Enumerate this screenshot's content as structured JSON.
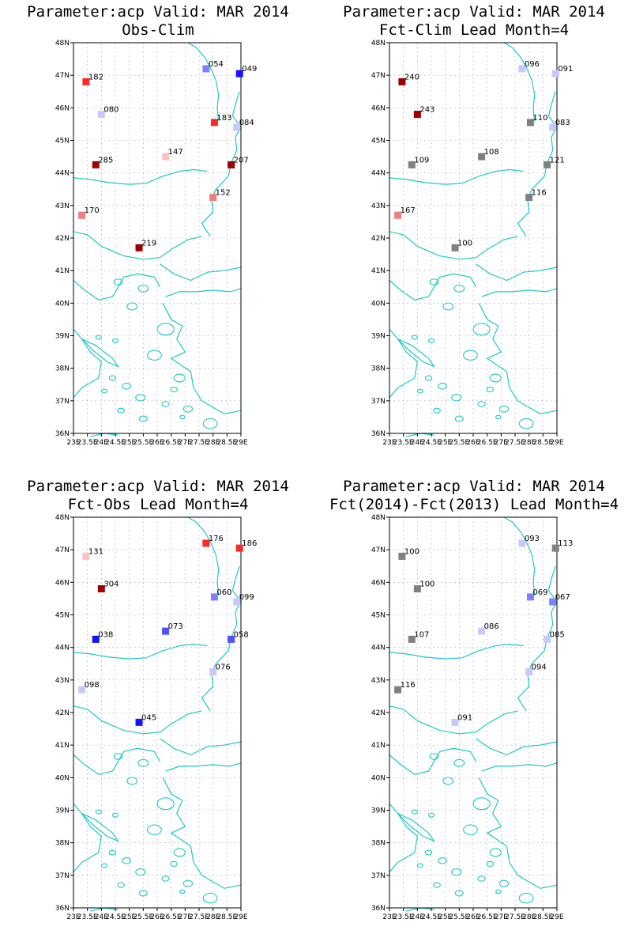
{
  "figure": {
    "lat_ticks": [
      "48N",
      "47N",
      "46N",
      "45N",
      "44N",
      "43N",
      "42N",
      "41N",
      "40N",
      "39N",
      "38N",
      "37N",
      "36N"
    ],
    "lon_ticks": [
      "23E",
      "23.5E",
      "24E",
      "24.5E",
      "25E",
      "25.5E",
      "26E",
      "26.5E",
      "27E",
      "27.5E",
      "28E",
      "28.5E",
      "29E"
    ],
    "lon_range": [
      23,
      29
    ],
    "lat_range": [
      36,
      48
    ],
    "grid": true,
    "coastline_color": "#1fc8c8",
    "colors": {
      "dark_red": "#9c0000",
      "red": "#ff2828",
      "light_red": "#f08080",
      "pink": "#ffc0c0",
      "gray": "#808080",
      "pale_blue": "#c8c8ff",
      "light_blue": "#8080ff",
      "medium_blue": "#5050ff",
      "blue": "#1414ff"
    }
  },
  "panels": [
    {
      "title1": "Parameter:acp Valid: MAR 2014",
      "title2": "Obs-Clim",
      "stations": [
        {
          "lon": 23.45,
          "lat": 46.8,
          "label": "182",
          "color": "red"
        },
        {
          "lon": 27.75,
          "lat": 47.2,
          "label": "054",
          "color": "light_blue"
        },
        {
          "lon": 28.95,
          "lat": 47.05,
          "label": "049",
          "color": "blue"
        },
        {
          "lon": 24.0,
          "lat": 45.8,
          "label": "080",
          "color": "pale_blue"
        },
        {
          "lon": 28.05,
          "lat": 45.55,
          "label": "183",
          "color": "red"
        },
        {
          "lon": 28.85,
          "lat": 45.4,
          "label": "084",
          "color": "pale_blue"
        },
        {
          "lon": 23.8,
          "lat": 44.25,
          "label": "285",
          "color": "dark_red"
        },
        {
          "lon": 26.3,
          "lat": 44.5,
          "label": "147",
          "color": "pink"
        },
        {
          "lon": 28.65,
          "lat": 44.25,
          "label": "207",
          "color": "dark_red"
        },
        {
          "lon": 28.0,
          "lat": 43.25,
          "label": "152",
          "color": "light_red"
        },
        {
          "lon": 23.3,
          "lat": 42.7,
          "label": "170",
          "color": "light_red"
        },
        {
          "lon": 25.35,
          "lat": 41.7,
          "label": "219",
          "color": "dark_red"
        }
      ]
    },
    {
      "title1": "Parameter:acp Valid: MAR 2014",
      "title2": "Fct-Clim Lead Month=4",
      "stations": [
        {
          "lon": 23.45,
          "lat": 46.8,
          "label": "240",
          "color": "dark_red"
        },
        {
          "lon": 27.75,
          "lat": 47.2,
          "label": "096",
          "color": "pale_blue"
        },
        {
          "lon": 28.95,
          "lat": 47.05,
          "label": "091",
          "color": "pale_blue"
        },
        {
          "lon": 24.0,
          "lat": 45.8,
          "label": "243",
          "color": "dark_red"
        },
        {
          "lon": 28.05,
          "lat": 45.55,
          "label": "110",
          "color": "gray"
        },
        {
          "lon": 28.85,
          "lat": 45.4,
          "label": "083",
          "color": "pale_blue"
        },
        {
          "lon": 23.8,
          "lat": 44.25,
          "label": "109",
          "color": "gray"
        },
        {
          "lon": 26.3,
          "lat": 44.5,
          "label": "108",
          "color": "gray"
        },
        {
          "lon": 28.65,
          "lat": 44.25,
          "label": "121",
          "color": "gray"
        },
        {
          "lon": 28.0,
          "lat": 43.25,
          "label": "116",
          "color": "gray"
        },
        {
          "lon": 23.3,
          "lat": 42.7,
          "label": "167",
          "color": "light_red"
        },
        {
          "lon": 25.35,
          "lat": 41.7,
          "label": "100",
          "color": "gray"
        }
      ]
    },
    {
      "title1": "Parameter:acp Valid: MAR 2014",
      "title2": "Fct-Obs Lead Month=4",
      "stations": [
        {
          "lon": 23.45,
          "lat": 46.8,
          "label": "131",
          "color": "pink"
        },
        {
          "lon": 27.75,
          "lat": 47.2,
          "label": "176",
          "color": "red"
        },
        {
          "lon": 28.95,
          "lat": 47.05,
          "label": "186",
          "color": "red"
        },
        {
          "lon": 24.0,
          "lat": 45.8,
          "label": "304",
          "color": "dark_red"
        },
        {
          "lon": 28.05,
          "lat": 45.55,
          "label": "060",
          "color": "light_blue"
        },
        {
          "lon": 28.85,
          "lat": 45.4,
          "label": "099",
          "color": "pale_blue"
        },
        {
          "lon": 23.8,
          "lat": 44.25,
          "label": "038",
          "color": "blue"
        },
        {
          "lon": 26.3,
          "lat": 44.5,
          "label": "073",
          "color": "medium_blue"
        },
        {
          "lon": 28.65,
          "lat": 44.25,
          "label": "058",
          "color": "medium_blue"
        },
        {
          "lon": 28.0,
          "lat": 43.25,
          "label": "076",
          "color": "pale_blue"
        },
        {
          "lon": 23.3,
          "lat": 42.7,
          "label": "098",
          "color": "pale_blue"
        },
        {
          "lon": 25.35,
          "lat": 41.7,
          "label": "045",
          "color": "blue"
        }
      ]
    },
    {
      "title1": "Parameter:acp Valid: MAR 2014",
      "title2": "Fct(2014)-Fct(2013) Lead Month=4",
      "stations": [
        {
          "lon": 23.45,
          "lat": 46.8,
          "label": "100",
          "color": "gray"
        },
        {
          "lon": 27.75,
          "lat": 47.2,
          "label": "093",
          "color": "pale_blue"
        },
        {
          "lon": 28.95,
          "lat": 47.05,
          "label": "113",
          "color": "gray"
        },
        {
          "lon": 24.0,
          "lat": 45.8,
          "label": "100",
          "color": "gray"
        },
        {
          "lon": 28.05,
          "lat": 45.55,
          "label": "069",
          "color": "light_blue"
        },
        {
          "lon": 28.85,
          "lat": 45.4,
          "label": "067",
          "color": "light_blue"
        },
        {
          "lon": 23.8,
          "lat": 44.25,
          "label": "107",
          "color": "gray"
        },
        {
          "lon": 26.3,
          "lat": 44.5,
          "label": "086",
          "color": "pale_blue"
        },
        {
          "lon": 28.65,
          "lat": 44.25,
          "label": "085",
          "color": "pale_blue"
        },
        {
          "lon": 28.0,
          "lat": 43.25,
          "label": "094",
          "color": "pale_blue"
        },
        {
          "lon": 23.3,
          "lat": 42.7,
          "label": "116",
          "color": "gray"
        },
        {
          "lon": 25.35,
          "lat": 41.7,
          "label": "091",
          "color": "pale_blue"
        }
      ]
    }
  ]
}
